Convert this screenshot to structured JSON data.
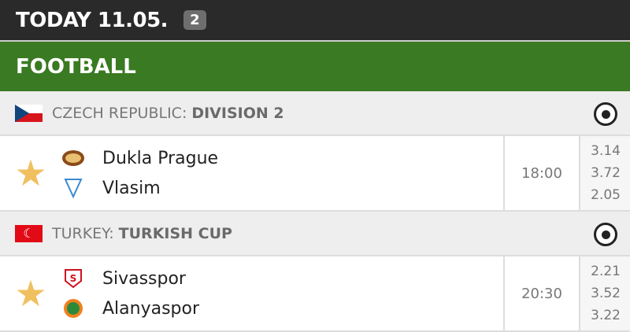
{
  "header": {
    "title": "TODAY 11.05.",
    "count": "2"
  },
  "sport": {
    "title": "FOOTBALL"
  },
  "leagues": [
    {
      "country": "CZECH REPUBLIC:",
      "name": "DIVISION 2",
      "flag": "czech-flag",
      "icon": "soccer-ball-icon",
      "match": {
        "home": "Dukla Prague",
        "away": "Vlasim",
        "time": "18:00",
        "odds": [
          "3.14",
          "3.72",
          "2.05"
        ],
        "favorite_color": "#f0c060"
      }
    },
    {
      "country": "TURKEY:",
      "name": "TURKISH CUP",
      "flag": "turkey-flag",
      "icon": "soccer-ball-icon",
      "match": {
        "home": "Sivasspor",
        "away": "Alanyaspor",
        "time": "20:30",
        "odds": [
          "2.21",
          "3.52",
          "3.22"
        ],
        "favorite_color": "#f0c060"
      }
    }
  ]
}
